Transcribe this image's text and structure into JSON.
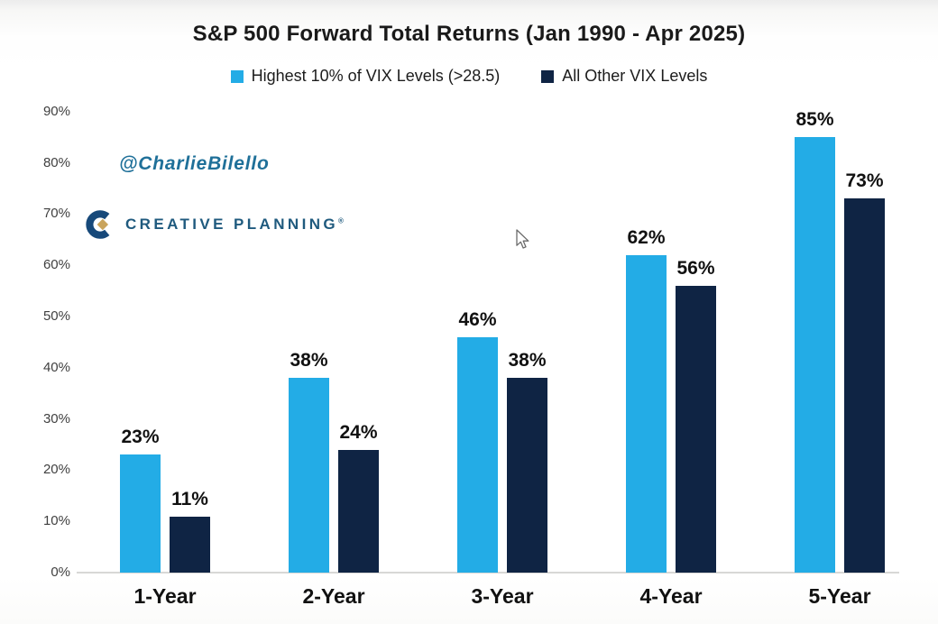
{
  "title": "S&P 500 Forward Total Returns (Jan 1990 - Apr 2025)",
  "watermark": "@CharlieBilello",
  "logo": {
    "text": "CREATIVE PLANNING",
    "mark": "®"
  },
  "colors": {
    "series_high_vix": "#23ace6",
    "series_other_vix": "#0f2444",
    "axis_line": "#d8d8d6",
    "watermark_text": "#1f7099",
    "logo_text": "#1f5a7e",
    "logo_blue": "#17497a",
    "logo_gold": "#c9a45c"
  },
  "chart_data": {
    "type": "bar",
    "categories": [
      "1-Year",
      "2-Year",
      "3-Year",
      "4-Year",
      "5-Year"
    ],
    "series": [
      {
        "name": "Highest 10% of VIX Levels (>28.5)",
        "color": "#23ace6",
        "values": [
          23,
          38,
          46,
          62,
          85
        ]
      },
      {
        "name": "All Other VIX Levels",
        "color": "#0f2444",
        "values": [
          11,
          24,
          38,
          56,
          73
        ]
      }
    ],
    "value_label_format": "{v}%",
    "ytick_format": "{v}%",
    "ylim": [
      0,
      90
    ],
    "ytick_step": 10,
    "grid": false,
    "legend_position": "top"
  }
}
